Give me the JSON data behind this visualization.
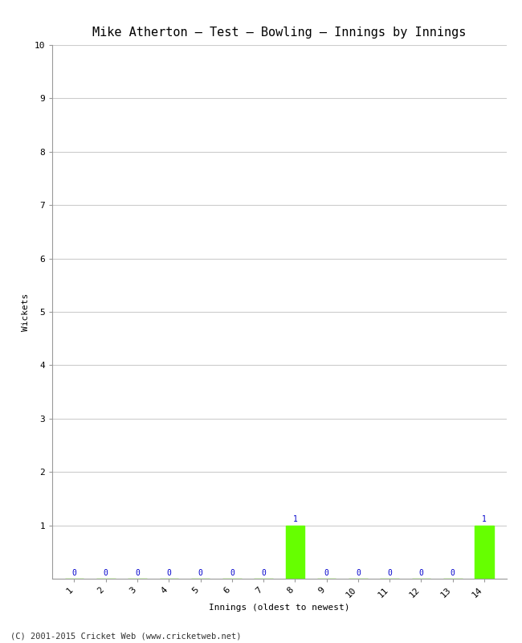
{
  "title": "Mike Atherton – Test – Bowling – Innings by Innings",
  "xlabel": "Innings (oldest to newest)",
  "ylabel": "Wickets",
  "footer": "(C) 2001-2015 Cricket Web (www.cricketweb.net)",
  "innings": [
    1,
    2,
    3,
    4,
    5,
    6,
    7,
    8,
    9,
    10,
    11,
    12,
    13,
    14
  ],
  "wickets": [
    0,
    0,
    0,
    0,
    0,
    0,
    0,
    1,
    0,
    0,
    0,
    0,
    0,
    1
  ],
  "bar_color": "#66ff00",
  "label_color": "#0000cc",
  "ylim": [
    0,
    10
  ],
  "yticks": [
    1,
    2,
    3,
    4,
    5,
    6,
    7,
    8,
    9,
    10
  ],
  "bg_color": "#ffffff",
  "grid_color": "#cccccc",
  "title_fontsize": 11,
  "axis_label_fontsize": 8,
  "tick_fontsize": 8,
  "bar_label_fontsize": 7,
  "footer_fontsize": 7.5
}
